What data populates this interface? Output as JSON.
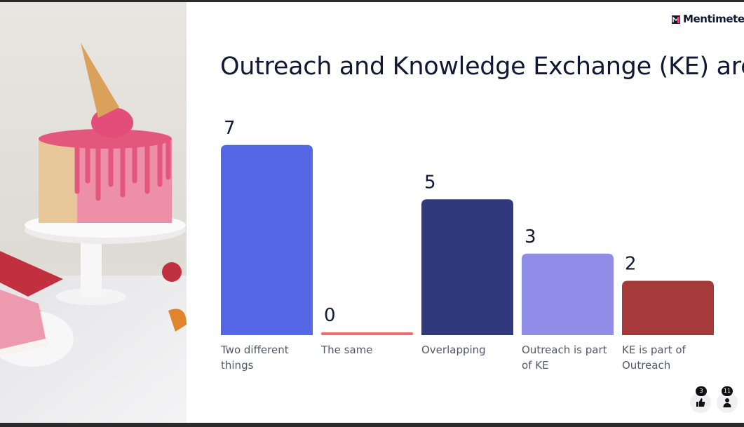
{
  "brand": "Mentimeter",
  "chart_data": {
    "type": "bar",
    "title": "Outreach and Knowledge Exchange (KE) are...",
    "categories": [
      "Two different things",
      "The same",
      "Overlapping",
      "Outreach is part of KE",
      "KE is part of Outreach"
    ],
    "values": [
      7,
      0,
      5,
      3,
      2
    ],
    "colors": [
      "#5468e6",
      "#f26b6b",
      "#30397c",
      "#8f8de8",
      "#a63a3a"
    ]
  },
  "reactions": {
    "likes": 3,
    "participants": 11
  }
}
